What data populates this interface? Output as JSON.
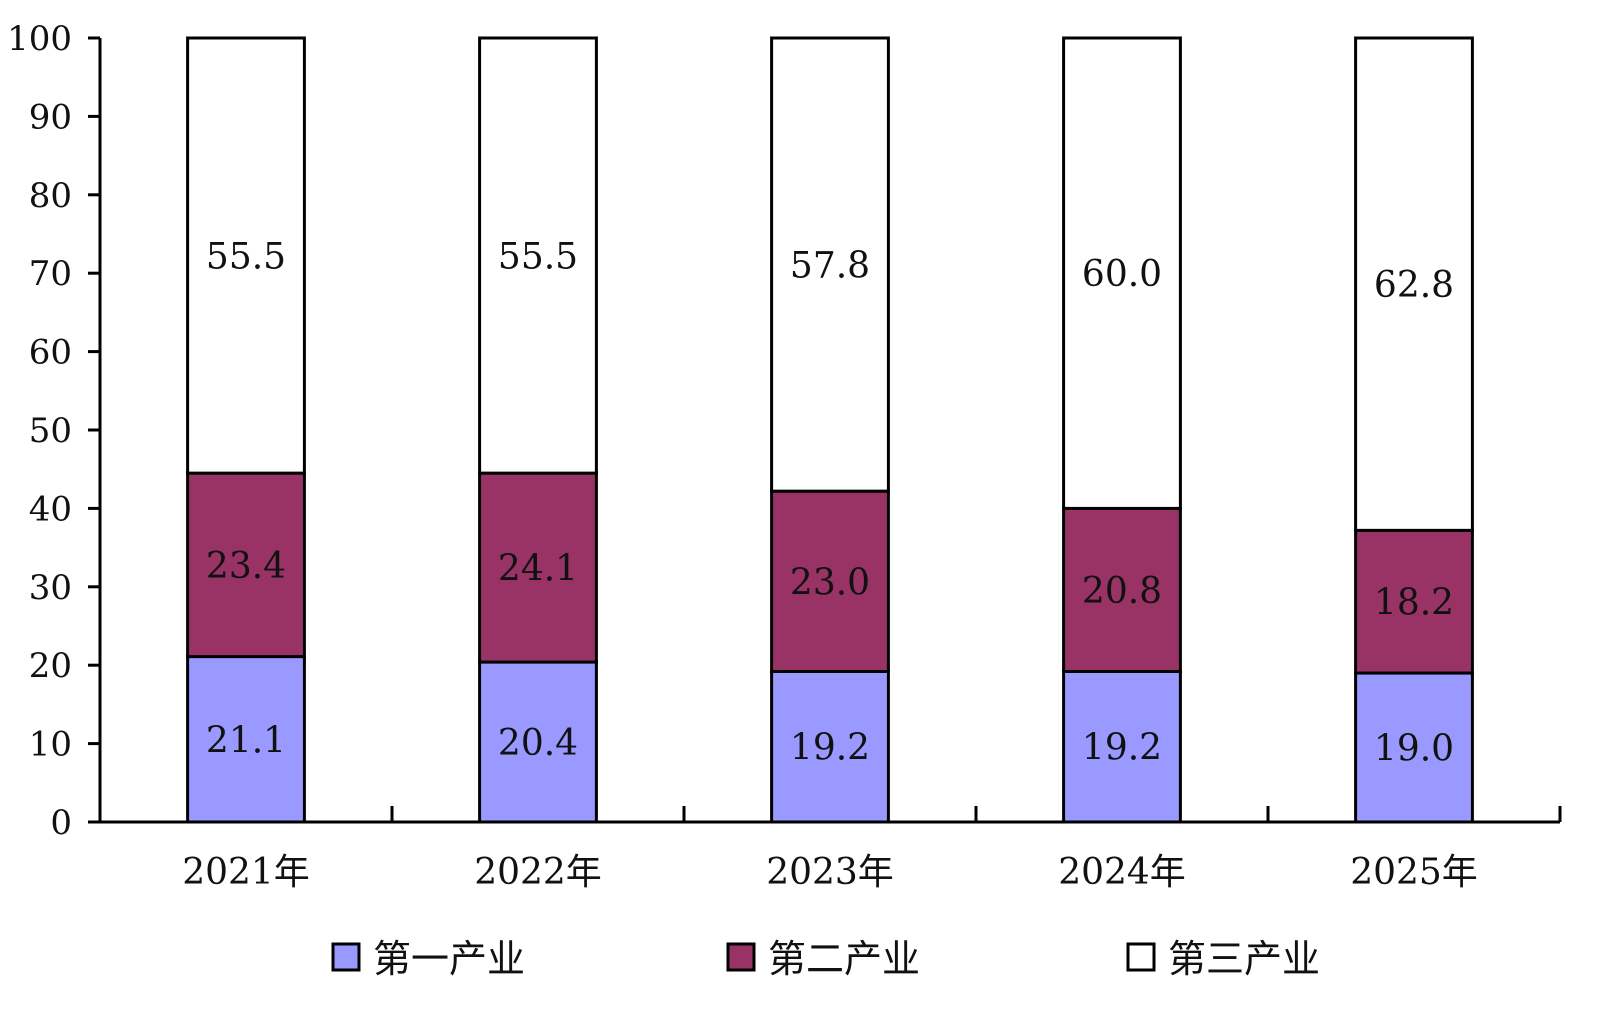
{
  "chart_data": {
    "type": "bar",
    "stacked": true,
    "title": "",
    "xlabel": "",
    "ylabel": "",
    "ylim": [
      0,
      100
    ],
    "yticks": [
      0,
      10,
      20,
      30,
      40,
      50,
      60,
      70,
      80,
      90,
      100
    ],
    "categories": [
      "2021年",
      "2022年",
      "2023年",
      "2024年",
      "2025年"
    ],
    "series": [
      {
        "name": "第一产业",
        "color": "#9999ff",
        "values": [
          21.1,
          20.4,
          19.2,
          19.2,
          19.0
        ]
      },
      {
        "name": "第二产业",
        "color": "#993366",
        "values": [
          23.4,
          24.1,
          23.0,
          20.8,
          18.2
        ]
      },
      {
        "name": "第三产业",
        "color": "#ffffff",
        "values": [
          55.5,
          55.5,
          57.8,
          60.0,
          62.8
        ]
      }
    ],
    "grid": false,
    "legend_position": "bottom"
  }
}
